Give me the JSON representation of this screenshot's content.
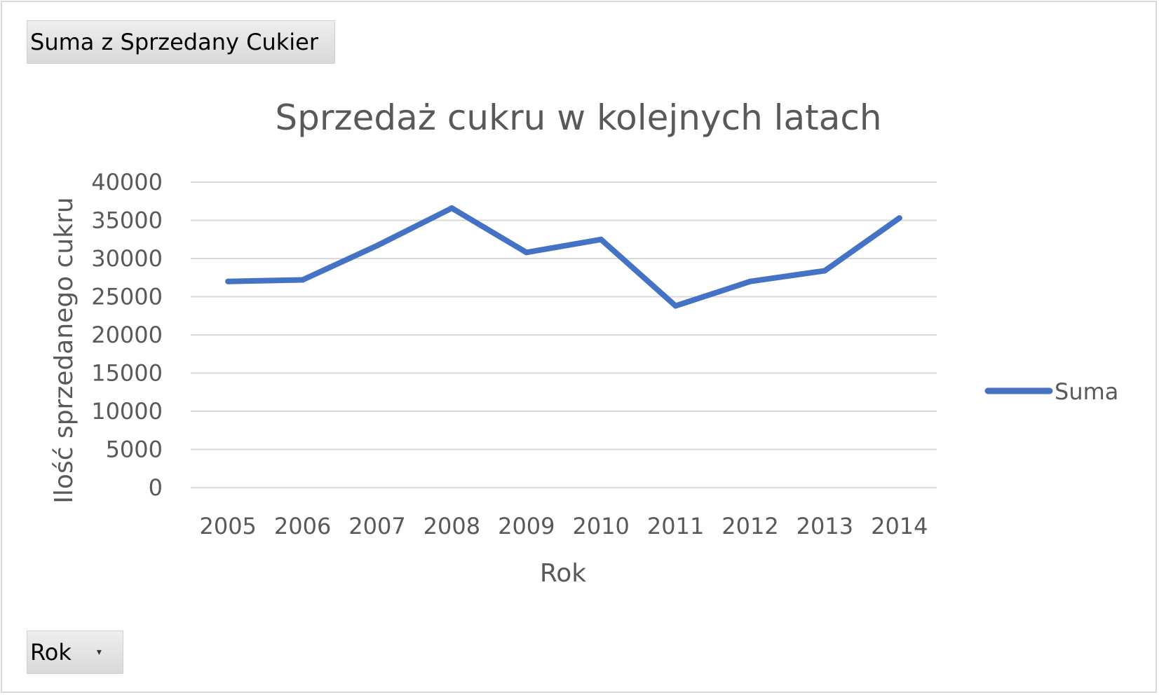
{
  "pivot": {
    "value_field_label": "Suma z Sprzedany Cukier",
    "axis_field_label": "Rok",
    "dropdown_icon": "chevron-down-icon"
  },
  "chart_data": {
    "type": "line",
    "title": "Sprzedaż cukru w kolejnych latach",
    "xlabel": "Rok",
    "ylabel": "Ilość sprzedanego cukru",
    "categories": [
      "2005",
      "2006",
      "2007",
      "2008",
      "2009",
      "2010",
      "2011",
      "2012",
      "2013",
      "2014"
    ],
    "series": [
      {
        "name": "Suma",
        "values": [
          27000,
          27200,
          31700,
          36600,
          30800,
          32500,
          23800,
          27000,
          28400,
          35300
        ]
      }
    ],
    "ylim": [
      0,
      40000
    ],
    "yticks": [
      0,
      5000,
      10000,
      15000,
      20000,
      25000,
      30000,
      35000,
      40000
    ],
    "grid": true,
    "legend": "right",
    "colors": {
      "series": "#4472c4",
      "grid": "#d9d9d9",
      "text": "#595959"
    }
  }
}
